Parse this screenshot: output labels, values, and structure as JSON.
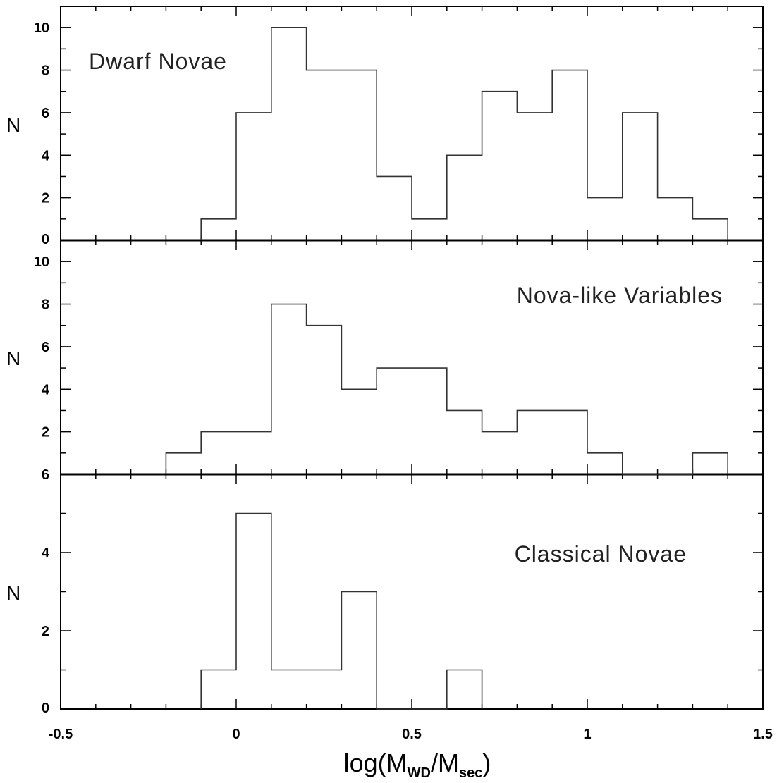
{
  "chart_data": [
    {
      "type": "bar",
      "annotation": "Dwarf Novae",
      "ylabel": "N",
      "bin_edges": [
        -0.1,
        0.0,
        0.1,
        0.2,
        0.3,
        0.4,
        0.5,
        0.6,
        0.7,
        0.8,
        0.9,
        1.0,
        1.1,
        1.2,
        1.3,
        1.4
      ],
      "values": [
        1,
        6,
        10,
        8,
        8,
        3,
        1,
        4,
        7,
        6,
        8,
        2,
        6,
        2,
        1
      ],
      "ylim": [
        0,
        11
      ],
      "yticks": [
        "0",
        "2",
        "4",
        "6",
        "8",
        "10"
      ],
      "grid": false
    },
    {
      "type": "bar",
      "annotation": "Nova-like Variables",
      "ylabel": "N",
      "bin_edges": [
        -0.2,
        -0.1,
        0.0,
        0.1,
        0.2,
        0.3,
        0.4,
        0.5,
        0.6,
        0.7,
        0.8,
        0.9,
        1.0,
        1.1,
        1.2,
        1.3,
        1.4
      ],
      "values": [
        1,
        2,
        2,
        8,
        7,
        4,
        5,
        5,
        3,
        2,
        3,
        3,
        1,
        0,
        0,
        1
      ],
      "ylim": [
        0,
        11
      ],
      "yticks": [
        "2",
        "4",
        "6",
        "8",
        "10"
      ],
      "grid": false
    },
    {
      "type": "bar",
      "annotation": "Classical Novae",
      "ylabel": "N",
      "bin_edges": [
        -0.1,
        0.0,
        0.1,
        0.2,
        0.3,
        0.4,
        0.5,
        0.6,
        0.7
      ],
      "values": [
        1,
        5,
        1,
        1,
        3,
        0,
        0,
        1
      ],
      "ylim": [
        0,
        6
      ],
      "yticks": [
        "0",
        "2",
        "4",
        "6"
      ],
      "grid": false
    }
  ],
  "shared_x": {
    "xlim": [
      -0.5,
      1.5
    ],
    "xticks": [
      {
        "value": -0.5,
        "label": "-0.5"
      },
      {
        "value": 0,
        "label": "0"
      },
      {
        "value": 0.5,
        "label": "0.5"
      },
      {
        "value": 1,
        "label": "1"
      },
      {
        "value": 1.5,
        "label": "1.5"
      }
    ],
    "xlabel": {
      "prefix": "log(M",
      "sub1": "WD",
      "mid": "/M",
      "sub2": "sec",
      "suffix": ")"
    }
  }
}
